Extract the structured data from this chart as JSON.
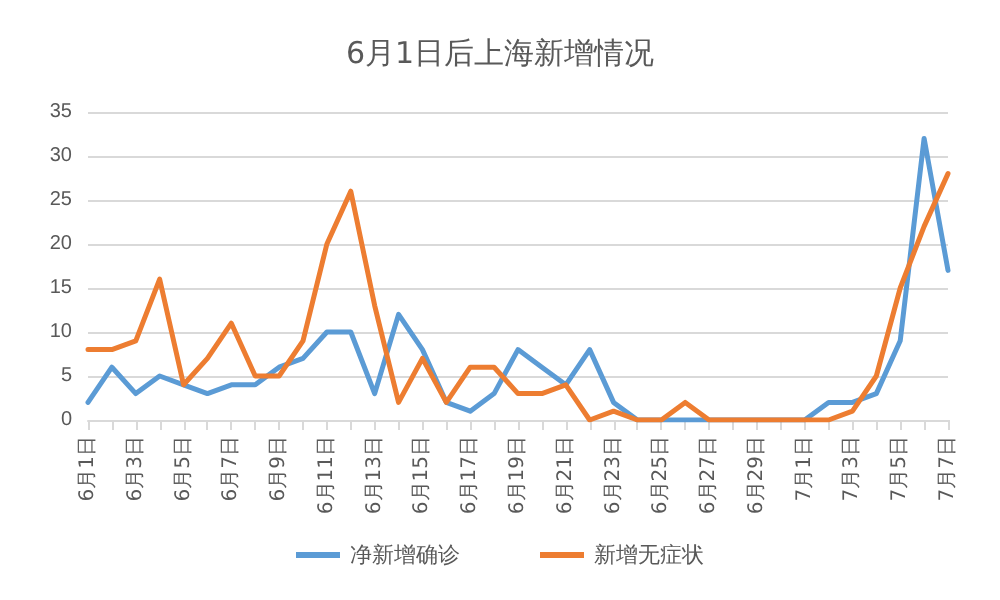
{
  "chart_data": {
    "type": "line",
    "title": "6月1日后上海新增情况",
    "categories": [
      "6月1日",
      null,
      "6月3日",
      null,
      "6月5日",
      null,
      "6月7日",
      null,
      "6月9日",
      null,
      "6月11日",
      null,
      "6月13日",
      null,
      "6月15日",
      null,
      "6月17日",
      null,
      "6月19日",
      null,
      "6月21日",
      null,
      "6月23日",
      null,
      "6月25日",
      null,
      "6月27日",
      null,
      "6月29日",
      null,
      "7月1日",
      null,
      "7月3日",
      null,
      "7月5日",
      null,
      "7月7日"
    ],
    "series": [
      {
        "name": "净新增确诊",
        "color": "#5b9bd5",
        "values": [
          2,
          6,
          3,
          5,
          4,
          3,
          4,
          4,
          6,
          7,
          10,
          10,
          3,
          12,
          8,
          2,
          1,
          3,
          8,
          6,
          4,
          8,
          2,
          0,
          0,
          0,
          0,
          0,
          0,
          0,
          0,
          2,
          2,
          3,
          9,
          32,
          17
        ]
      },
      {
        "name": "新增无症状",
        "color": "#ed7d31",
        "values": [
          8,
          8,
          9,
          16,
          4,
          7,
          11,
          5,
          5,
          9,
          20,
          26,
          13,
          2,
          7,
          2,
          6,
          6,
          3,
          3,
          4,
          0,
          1,
          0,
          0,
          2,
          0,
          0,
          0,
          0,
          0,
          0,
          1,
          5,
          15,
          22,
          28
        ]
      }
    ],
    "ylim": [
      0,
      35
    ],
    "yticks": [
      0,
      5,
      10,
      15,
      20,
      25,
      30,
      35
    ],
    "grid": "y",
    "legend": "bottom",
    "marker": "none",
    "line_style": "solid"
  }
}
